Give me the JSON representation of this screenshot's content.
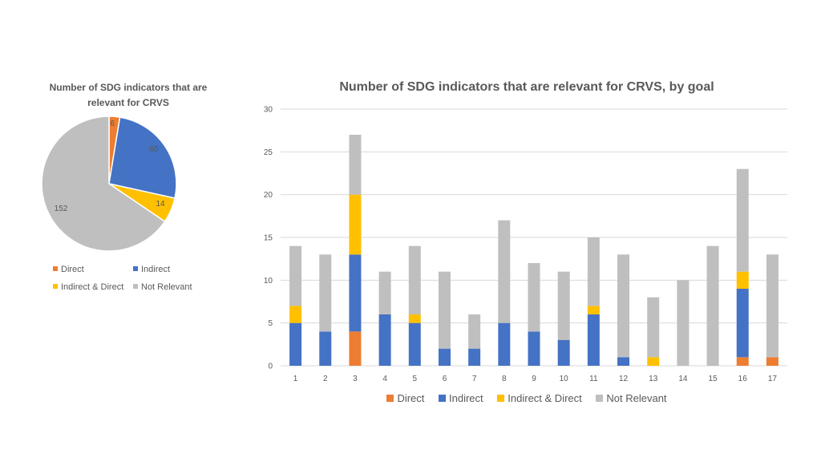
{
  "colors": {
    "direct": "#ED7D31",
    "indirect": "#4472C4",
    "indirect_direct": "#FFC000",
    "not_relevant": "#BFBFBF",
    "text": "#595959",
    "grid": "#D9D9D9"
  },
  "chart_data": [
    {
      "type": "pie",
      "title": "Number of SDG indicators that are relevant for CRVS",
      "labels": [
        "Direct",
        "Indirect",
        "Indirect & Direct",
        "Not Relevant"
      ],
      "values": [
        6,
        60,
        14,
        152
      ],
      "data_labels": [
        "6",
        "60",
        "14",
        "152"
      ],
      "legend_position": "bottom"
    },
    {
      "type": "bar",
      "stacked": true,
      "title": "Number of SDG indicators that are relevant for CRVS, by goal",
      "categories": [
        "1",
        "2",
        "3",
        "4",
        "5",
        "6",
        "7",
        "8",
        "9",
        "10",
        "11",
        "12",
        "13",
        "14",
        "15",
        "16",
        "17"
      ],
      "series": [
        {
          "name": "Direct",
          "values": [
            0,
            0,
            4,
            0,
            0,
            0,
            0,
            0,
            0,
            0,
            0,
            0,
            0,
            0,
            0,
            1,
            1
          ]
        },
        {
          "name": "Indirect",
          "values": [
            5,
            4,
            9,
            6,
            5,
            2,
            2,
            5,
            4,
            3,
            6,
            1,
            0,
            0,
            0,
            8,
            0
          ]
        },
        {
          "name": "Indirect & Direct",
          "values": [
            2,
            0,
            7,
            0,
            1,
            0,
            0,
            0,
            0,
            0,
            1,
            0,
            1,
            0,
            0,
            2,
            0
          ]
        },
        {
          "name": "Not Relevant",
          "values": [
            7,
            9,
            7,
            5,
            8,
            9,
            4,
            12,
            8,
            8,
            8,
            12,
            7,
            10,
            14,
            12,
            12
          ]
        }
      ],
      "ylim": [
        0,
        30
      ],
      "yticks": [
        "0",
        "5",
        "10",
        "15",
        "20",
        "25",
        "30"
      ],
      "xlabel": "",
      "ylabel": "",
      "grid": true,
      "legend_position": "bottom"
    }
  ]
}
